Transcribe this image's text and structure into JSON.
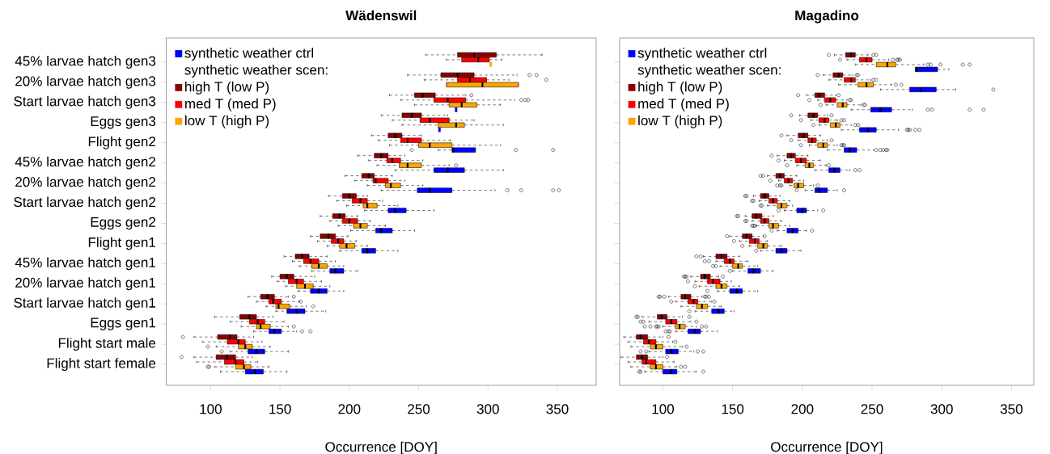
{
  "chart_data": [
    {
      "type": "box",
      "title": "Wädenswil",
      "xlabel": "Occurrence [DOY]",
      "orientation": "horizontal",
      "legend": "top left",
      "legend_title": "synthetic weather scen:",
      "xlim": [
        68,
        378
      ],
      "xticks": [
        100,
        150,
        200,
        250,
        300,
        350
      ],
      "categories": [
        "45% larvae hatch gen3",
        "20% larvae hatch gen3",
        "Start larvae hatch gen3",
        "Eggs gen3",
        "Flight gen2",
        "45% larvae hatch gen2",
        "20% larvae hatch gen2",
        "Start larvae hatch gen2",
        "Eggs gen2",
        "Flight gen1",
        "45% larvae hatch gen1",
        "20% larvae hatch gen1",
        "Start larvae hatch gen1",
        "Eggs gen1",
        "Flight start male",
        "Flight start female"
      ],
      "series": [
        {
          "name": "synthetic weather ctrl",
          "color": "#0000ff",
          "boxes": [
            null,
            null,
            {
              "low": 277,
              "q1": 277,
              "median": 277,
              "q3": 277,
              "high": 277
            },
            {
              "low": 265,
              "q1": 265,
              "median": 265,
              "q3": 265,
              "high": 265
            },
            {
              "low": 264,
              "q1": 274,
              "median": 275,
              "q3": 291,
              "high": 291,
              "outliers": [
                245,
                320,
                347
              ]
            },
            {
              "low": 233,
              "q1": 261,
              "median": 271,
              "q3": 283,
              "high": 311
            },
            {
              "low": 223,
              "q1": 249,
              "median": 258,
              "q3": 274,
              "high": 305,
              "outliers": [
                314,
                324,
                347,
                351
              ]
            },
            {
              "low": 211,
              "q1": 228,
              "median": 233,
              "q3": 241,
              "high": 261
            },
            {
              "low": 201,
              "q1": 219,
              "median": 223,
              "q3": 231,
              "high": 247
            },
            {
              "low": 193,
              "q1": 209,
              "median": 213,
              "q3": 219,
              "high": 235
            },
            {
              "low": 173,
              "q1": 186,
              "median": 190,
              "q3": 196,
              "high": 206
            },
            {
              "low": 163,
              "q1": 172,
              "median": 178,
              "q3": 184,
              "high": 196
            },
            {
              "low": 147,
              "q1": 155,
              "median": 162,
              "q3": 168,
              "high": 183
            },
            {
              "low": 131,
              "q1": 142,
              "median": 146,
              "q3": 151,
              "high": 162,
              "outliers": [
                166,
                172
              ]
            },
            {
              "low": 114,
              "q1": 127,
              "median": 133,
              "q3": 139,
              "high": 156,
              "outliers": [
                108
              ]
            },
            {
              "low": 107,
              "q1": 125,
              "median": 132,
              "q3": 138,
              "high": 155
            }
          ]
        },
        {
          "name": "high T (low P)",
          "color": "#8b0000",
          "boxes": [
            {
              "low": 255,
              "q1": 278,
              "median": 290,
              "q3": 306,
              "high": 339
            },
            {
              "low": 242,
              "q1": 266,
              "median": 278,
              "q3": 290,
              "high": 321,
              "outliers": [
                330,
                335
              ]
            },
            {
              "low": 229,
              "q1": 247,
              "median": 253,
              "q3": 262,
              "high": 284,
              "outliers": [
                288
              ]
            },
            {
              "low": 223,
              "q1": 238,
              "median": 245,
              "q3": 252,
              "high": 271
            },
            {
              "low": 216,
              "q1": 228,
              "median": 233,
              "q3": 238,
              "high": 252
            },
            {
              "low": 206,
              "q1": 218,
              "median": 223,
              "q3": 228,
              "high": 240
            },
            {
              "low": 197,
              "q1": 209,
              "median": 214,
              "q3": 218,
              "high": 231
            },
            {
              "low": 185,
              "q1": 195,
              "median": 200,
              "q3": 205,
              "high": 213
            },
            {
              "low": 179,
              "q1": 188,
              "median": 193,
              "q3": 197,
              "high": 206
            },
            {
              "low": 172,
              "q1": 179,
              "median": 185,
              "q3": 190,
              "high": 199
            },
            {
              "low": 153,
              "q1": 161,
              "median": 166,
              "q3": 171,
              "high": 184
            },
            {
              "low": 144,
              "q1": 150,
              "median": 155,
              "q3": 160,
              "high": 175
            },
            {
              "low": 127,
              "q1": 136,
              "median": 141,
              "q3": 146,
              "high": 156,
              "outliers": [
                160
              ]
            },
            {
              "low": 103,
              "q1": 121,
              "median": 128,
              "q3": 133,
              "high": 145
            },
            {
              "low": 88,
              "q1": 105,
              "median": 114,
              "q3": 119,
              "high": 131,
              "outliers": [
                80
              ]
            },
            {
              "low": 88,
              "q1": 104,
              "median": 112,
              "q3": 118,
              "high": 130,
              "outliers": [
                79
              ]
            }
          ]
        },
        {
          "name": "med T (med P)",
          "color": "#ff0000",
          "boxes": [
            {
              "low": 270,
              "q1": 281,
              "median": 293,
              "q3": 301,
              "high": 310
            },
            {
              "low": 254,
              "q1": 278,
              "median": 287,
              "q3": 299,
              "high": 315,
              "outliers": [
                342
              ]
            },
            {
              "low": 237,
              "q1": 261,
              "median": 271,
              "q3": 284,
              "high": 319,
              "outliers": [
                324,
                327,
                329
              ]
            },
            {
              "low": 231,
              "q1": 251,
              "median": 258,
              "q3": 272,
              "high": 290
            },
            {
              "low": 221,
              "q1": 237,
              "median": 242,
              "q3": 252,
              "high": 273
            },
            {
              "low": 214,
              "q1": 227,
              "median": 231,
              "q3": 237,
              "high": 253
            },
            {
              "low": 204,
              "q1": 217,
              "median": 219,
              "q3": 228,
              "high": 240
            },
            {
              "low": 191,
              "q1": 202,
              "median": 208,
              "q3": 213,
              "high": 224
            },
            {
              "low": 186,
              "q1": 195,
              "median": 200,
              "q3": 206,
              "high": 215
            },
            {
              "low": 177,
              "q1": 187,
              "median": 192,
              "q3": 196,
              "high": 205
            },
            {
              "low": 159,
              "q1": 167,
              "median": 172,
              "q3": 178,
              "high": 190
            },
            {
              "low": 148,
              "q1": 156,
              "median": 162,
              "q3": 167,
              "high": 180
            },
            {
              "low": 133,
              "q1": 142,
              "median": 145,
              "q3": 151,
              "high": 164,
              "outliers": [
                165
              ]
            },
            {
              "low": 114,
              "q1": 128,
              "median": 134,
              "q3": 139,
              "high": 153
            },
            {
              "low": 94,
              "q1": 112,
              "median": 120,
              "q3": 125,
              "high": 137
            },
            {
              "low": 90,
              "q1": 110,
              "median": 118,
              "q3": 124,
              "high": 134
            }
          ]
        },
        {
          "name": "low T (high P)",
          "color": "#ffa500",
          "boxes": [
            {
              "low": 302,
              "q1": 302,
              "median": 302,
              "q3": 302,
              "high": 302
            },
            {
              "low": 270,
              "q1": 270,
              "median": 296,
              "q3": 322,
              "high": 322
            },
            {
              "low": 247,
              "q1": 272,
              "median": 281,
              "q3": 292,
              "high": 309
            },
            {
              "low": 238,
              "q1": 264,
              "median": 277,
              "q3": 283,
              "high": 311
            },
            {
              "low": 229,
              "q1": 250,
              "median": 258,
              "q3": 274,
              "high": 309
            },
            {
              "low": 220,
              "q1": 236,
              "median": 242,
              "q3": 252,
              "high": 272,
              "outliers": [
                277
              ]
            },
            {
              "low": 213,
              "q1": 226,
              "median": 230,
              "q3": 237,
              "high": 253
            },
            {
              "low": 198,
              "q1": 210,
              "median": 213,
              "q3": 220,
              "high": 235
            },
            {
              "low": 192,
              "q1": 203,
              "median": 208,
              "q3": 213,
              "high": 226
            },
            {
              "low": 184,
              "q1": 193,
              "median": 198,
              "q3": 204,
              "high": 213
            },
            {
              "low": 164,
              "q1": 173,
              "median": 178,
              "q3": 184,
              "high": 196
            },
            {
              "low": 154,
              "q1": 162,
              "median": 168,
              "q3": 174,
              "high": 186
            },
            {
              "low": 140,
              "q1": 147,
              "median": 149,
              "q3": 157,
              "high": 169,
              "outliers": [
                174
              ]
            },
            {
              "low": 122,
              "q1": 133,
              "median": 136,
              "q3": 143,
              "high": 156,
              "outliers": [
                160
              ]
            },
            {
              "low": 104,
              "q1": 120,
              "median": 125,
              "q3": 130,
              "high": 143,
              "outliers": [
                98
              ]
            },
            {
              "low": 103,
              "q1": 118,
              "median": 124,
              "q3": 129,
              "high": 142,
              "outliers": [
                98,
                99
              ]
            }
          ]
        }
      ]
    },
    {
      "type": "box",
      "title": "Magadino",
      "xlabel": "Occurrence [DOY]",
      "orientation": "horizontal",
      "legend": "top left",
      "legend_title": "synthetic weather scen:",
      "xlim": [
        69,
        366
      ],
      "xticks": [
        100,
        150,
        200,
        250,
        300,
        350
      ],
      "categories": [
        null,
        null,
        null,
        null,
        null,
        null,
        null,
        null,
        null,
        null,
        null,
        null,
        null,
        null,
        null,
        null
      ],
      "series": [
        {
          "name": "synthetic weather ctrl",
          "color": "#0000ff",
          "boxes": [
            {
              "low": 281,
              "q1": 281,
              "median": 282,
              "q3": 297,
              "high": 305
            },
            {
              "low": 256,
              "q1": 277,
              "median": 285,
              "q3": 296,
              "high": 310,
              "outliers": [
                337
              ]
            },
            {
              "low": 235,
              "q1": 249,
              "median": 256,
              "q3": 264,
              "high": 279,
              "outliers": [
                290,
                293,
                320,
                330
              ]
            },
            {
              "low": 228,
              "q1": 241,
              "median": 247,
              "q3": 253,
              "high": 269,
              "outliers": [
                275,
                276,
                277,
                281,
                284
              ]
            },
            {
              "low": 218,
              "q1": 230,
              "median": 234,
              "q3": 239,
              "high": 251,
              "outliers": [
                253,
                256,
                258,
                260,
                261
              ]
            },
            {
              "low": 209,
              "q1": 219,
              "median": 223,
              "q3": 227,
              "high": 234,
              "outliers": [
                238,
                241
              ]
            },
            {
              "low": 202,
              "q1": 209,
              "median": 212,
              "q3": 218,
              "high": 225,
              "outliers": [
                196,
                230
              ]
            },
            {
              "low": 187,
              "q1": 196,
              "median": 200,
              "q3": 203,
              "high": 211,
              "outliers": [
                183,
                215
              ]
            },
            {
              "low": 182,
              "q1": 189,
              "median": 193,
              "q3": 197,
              "high": 203,
              "outliers": [
                178,
                207
              ]
            },
            {
              "low": 170,
              "q1": 181,
              "median": 185,
              "q3": 189,
              "high": 199,
              "outliers": [
                167
              ]
            },
            {
              "low": 150,
              "q1": 161,
              "median": 165,
              "q3": 170,
              "high": 179,
              "outliers": [
                148
              ]
            },
            {
              "low": 139,
              "q1": 148,
              "median": 153,
              "q3": 157,
              "high": 168,
              "outliers": [
                132
              ]
            },
            {
              "low": 123,
              "q1": 135,
              "median": 140,
              "q3": 144,
              "high": 151,
              "outliers": [
                119
              ]
            },
            {
              "low": 109,
              "q1": 118,
              "median": 123,
              "q3": 127,
              "high": 139,
              "outliers": [
                102,
                104,
                105
              ]
            },
            {
              "low": 90,
              "q1": 102,
              "median": 106,
              "q3": 111,
              "high": 122,
              "outliers": [
                84,
                88,
                125,
                129
              ]
            },
            {
              "low": 87,
              "q1": 100,
              "median": 106,
              "q3": 110,
              "high": 124,
              "outliers": [
                83,
                84,
                129
              ]
            }
          ]
        },
        {
          "name": "high T (low P)",
          "color": "#8b0000",
          "boxes": [
            {
              "low": 223,
              "q1": 231,
              "median": 235,
              "q3": 238,
              "high": 247,
              "outliers": [
                219,
                251,
                253
              ]
            },
            {
              "low": 215,
              "q1": 222,
              "median": 226,
              "q3": 229,
              "high": 236,
              "outliers": [
                211,
                239,
                240
              ]
            },
            {
              "low": 203,
              "q1": 209,
              "median": 212,
              "q3": 216,
              "high": 224,
              "outliers": [
                197,
                226
              ]
            },
            {
              "low": 198,
              "q1": 204,
              "median": 208,
              "q3": 211,
              "high": 218,
              "outliers": [
                192,
                221
              ]
            },
            {
              "low": 189,
              "q1": 197,
              "median": 201,
              "q3": 204,
              "high": 213,
              "outliers": [
                185
              ]
            },
            {
              "low": 182,
              "q1": 189,
              "median": 192,
              "q3": 195,
              "high": 204,
              "outliers": [
                178
              ]
            },
            {
              "low": 175,
              "q1": 181,
              "median": 184,
              "q3": 187,
              "high": 196,
              "outliers": [
                170,
                172
              ]
            },
            {
              "low": 165,
              "q1": 170,
              "median": 173,
              "q3": 176,
              "high": 184,
              "outliers": [
                159,
                160
              ]
            },
            {
              "low": 159,
              "q1": 164,
              "median": 167,
              "q3": 171,
              "high": 179,
              "outliers": [
                153,
                154
              ]
            },
            {
              "low": 148,
              "q1": 157,
              "median": 160,
              "q3": 164,
              "high": 172,
              "outliers": [
                146,
                173
              ]
            },
            {
              "low": 129,
              "q1": 138,
              "median": 142,
              "q3": 146,
              "high": 155,
              "outliers": [
                124,
                127
              ]
            },
            {
              "low": 120,
              "q1": 127,
              "median": 130,
              "q3": 134,
              "high": 140,
              "outliers": [
                115,
                116,
                117,
                143
              ]
            },
            {
              "low": 104,
              "q1": 113,
              "median": 116,
              "q3": 120,
              "high": 128,
              "outliers": [
                97,
                98,
                101,
                130,
                131,
                133
              ]
            },
            {
              "low": 85,
              "q1": 96,
              "median": 99,
              "q3": 103,
              "high": 114,
              "outliers": [
                81,
                82,
                119
              ]
            },
            {
              "low": 72,
              "q1": 81,
              "median": 84,
              "q3": 89,
              "high": 100,
              "outliers": [
                104
              ]
            },
            {
              "low": 70,
              "q1": 81,
              "median": 85,
              "q3": 89,
              "high": 100,
              "outliers": [
                103
              ]
            }
          ]
        },
        {
          "name": "med T (med P)",
          "color": "#ff0000",
          "boxes": [
            {
              "low": 232,
              "q1": 241,
              "median": 246,
              "q3": 250,
              "high": 262,
              "outliers": [
                227,
                265,
                268,
                269,
                270
              ]
            },
            {
              "low": 219,
              "q1": 230,
              "median": 235,
              "q3": 238,
              "high": 249,
              "outliers": [
                251,
                253
              ]
            },
            {
              "low": 211,
              "q1": 216,
              "median": 220,
              "q3": 224,
              "high": 232,
              "outliers": [
                205,
                234,
                235
              ]
            },
            {
              "low": 206,
              "q1": 212,
              "median": 216,
              "q3": 219,
              "high": 225,
              "outliers": [
                199,
                228,
                230
              ]
            },
            {
              "low": 197,
              "q1": 204,
              "median": 207,
              "q3": 210,
              "high": 218,
              "outliers": [
                192,
                221
              ]
            },
            {
              "low": 187,
              "q1": 195,
              "median": 199,
              "q3": 203,
              "high": 213,
              "outliers": [
                183
              ]
            },
            {
              "low": 183,
              "q1": 187,
              "median": 190,
              "q3": 193,
              "high": 201,
              "outliers": [
                177
              ]
            },
            {
              "low": 169,
              "q1": 176,
              "median": 179,
              "q3": 182,
              "high": 191,
              "outliers": [
                164,
                165
              ]
            },
            {
              "low": 164,
              "q1": 170,
              "median": 173,
              "q3": 176,
              "high": 185,
              "outliers": [
                159,
                160
              ]
            },
            {
              "low": 155,
              "q1": 162,
              "median": 166,
              "q3": 169,
              "high": 175,
              "outliers": [
                151
              ]
            },
            {
              "low": 138,
              "q1": 144,
              "median": 148,
              "q3": 151,
              "high": 161,
              "outliers": [
                130,
                133
              ]
            },
            {
              "low": 123,
              "q1": 132,
              "median": 136,
              "q3": 141,
              "high": 149,
              "outliers": [
                118
              ]
            },
            {
              "low": 109,
              "q1": 118,
              "median": 122,
              "q3": 125,
              "high": 135,
              "outliers": [
                106,
                137
              ]
            },
            {
              "low": 90,
              "q1": 102,
              "median": 106,
              "q3": 110,
              "high": 120,
              "outliers": [
                84,
                86,
                124
              ]
            },
            {
              "low": 75,
              "q1": 86,
              "median": 90,
              "q3": 95,
              "high": 107,
              "outliers": [
                109
              ]
            },
            {
              "low": 75,
              "q1": 85,
              "median": 88,
              "q3": 95,
              "high": 108
            }
          ]
        },
        {
          "name": "low T (high P)",
          "color": "#ffa500",
          "boxes": [
            {
              "low": 238,
              "q1": 253,
              "median": 261,
              "q3": 267,
              "high": 287,
              "outliers": [
                290,
                292,
                299,
                315,
                320
              ]
            },
            {
              "low": 226,
              "q1": 240,
              "median": 246,
              "q3": 251,
              "high": 264,
              "outliers": [
                267,
                271
              ]
            },
            {
              "low": 217,
              "q1": 225,
              "median": 229,
              "q3": 232,
              "high": 242,
              "outliers": [
                213,
                244,
                245
              ]
            },
            {
              "low": 212,
              "q1": 220,
              "median": 224,
              "q3": 227,
              "high": 235,
              "outliers": [
                208,
                238,
                240
              ]
            },
            {
              "low": 205,
              "q1": 211,
              "median": 215,
              "q3": 218,
              "high": 225,
              "outliers": [
                199,
                228,
                229,
                230
              ]
            },
            {
              "low": 196,
              "q1": 202,
              "median": 205,
              "q3": 208,
              "high": 217,
              "outliers": [
                189,
                219
              ]
            },
            {
              "low": 191,
              "q1": 194,
              "median": 197,
              "q3": 201,
              "high": 208,
              "outliers": [
                182,
                184,
                185,
                211
              ]
            },
            {
              "low": 175,
              "q1": 182,
              "median": 185,
              "q3": 189,
              "high": 193,
              "outliers": [
                170,
                171
              ]
            },
            {
              "low": 167,
              "q1": 176,
              "median": 179,
              "q3": 183,
              "high": 191,
              "outliers": [
                164,
                165,
                166
              ]
            },
            {
              "low": 162,
              "q1": 168,
              "median": 172,
              "q3": 175,
              "high": 185,
              "outliers": [
                157
              ]
            },
            {
              "low": 141,
              "q1": 150,
              "median": 154,
              "q3": 157,
              "high": 168,
              "outliers": [
                136,
                138
              ]
            },
            {
              "low": 126,
              "q1": 138,
              "median": 142,
              "q3": 146,
              "high": 155,
              "outliers": [
                123
              ]
            },
            {
              "low": 113,
              "q1": 124,
              "median": 128,
              "q3": 132,
              "high": 142
            },
            {
              "low": 100,
              "q1": 109,
              "median": 112,
              "q3": 116,
              "high": 124,
              "outliers": [
                87,
                91,
                95,
                96,
                97,
                128,
                131
              ]
            },
            {
              "low": 77,
              "q1": 91,
              "median": 95,
              "q3": 100,
              "high": 114,
              "outliers": [
                117
              ]
            },
            {
              "low": 77,
              "q1": 91,
              "median": 95,
              "q3": 100,
              "high": 110,
              "outliers": [
                113,
                116
              ]
            }
          ]
        }
      ]
    }
  ]
}
